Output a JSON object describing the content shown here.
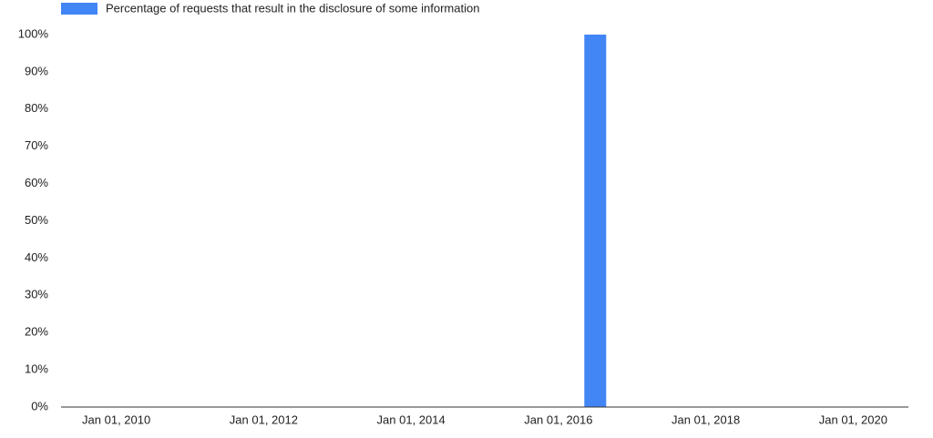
{
  "chart_data": {
    "type": "bar",
    "series": [
      {
        "name": "Percentage of requests that result in the disclosure of some information",
        "color": "#4285f4",
        "x": [
          2016.5
        ],
        "values": [
          100
        ]
      }
    ],
    "xlim": [
      2009.25,
      2020.75
    ],
    "xticks": [
      {
        "value": 2010,
        "label": "Jan 01, 2010"
      },
      {
        "value": 2012,
        "label": "Jan 01, 2012"
      },
      {
        "value": 2014,
        "label": "Jan 01, 2014"
      },
      {
        "value": 2016,
        "label": "Jan 01, 2016"
      },
      {
        "value": 2018,
        "label": "Jan 01, 2018"
      },
      {
        "value": 2020,
        "label": "Jan 01, 2020"
      }
    ],
    "ylim": [
      0,
      100
    ],
    "yticks": [
      {
        "value": 0,
        "label": "0%"
      },
      {
        "value": 10,
        "label": "10%"
      },
      {
        "value": 20,
        "label": "20%"
      },
      {
        "value": 30,
        "label": "30%"
      },
      {
        "value": 40,
        "label": "40%"
      },
      {
        "value": 50,
        "label": "50%"
      },
      {
        "value": 60,
        "label": "60%"
      },
      {
        "value": 70,
        "label": "70%"
      },
      {
        "value": 80,
        "label": "80%"
      },
      {
        "value": 90,
        "label": "90%"
      },
      {
        "value": 100,
        "label": "100%"
      }
    ],
    "grid": false,
    "legend": "top"
  }
}
